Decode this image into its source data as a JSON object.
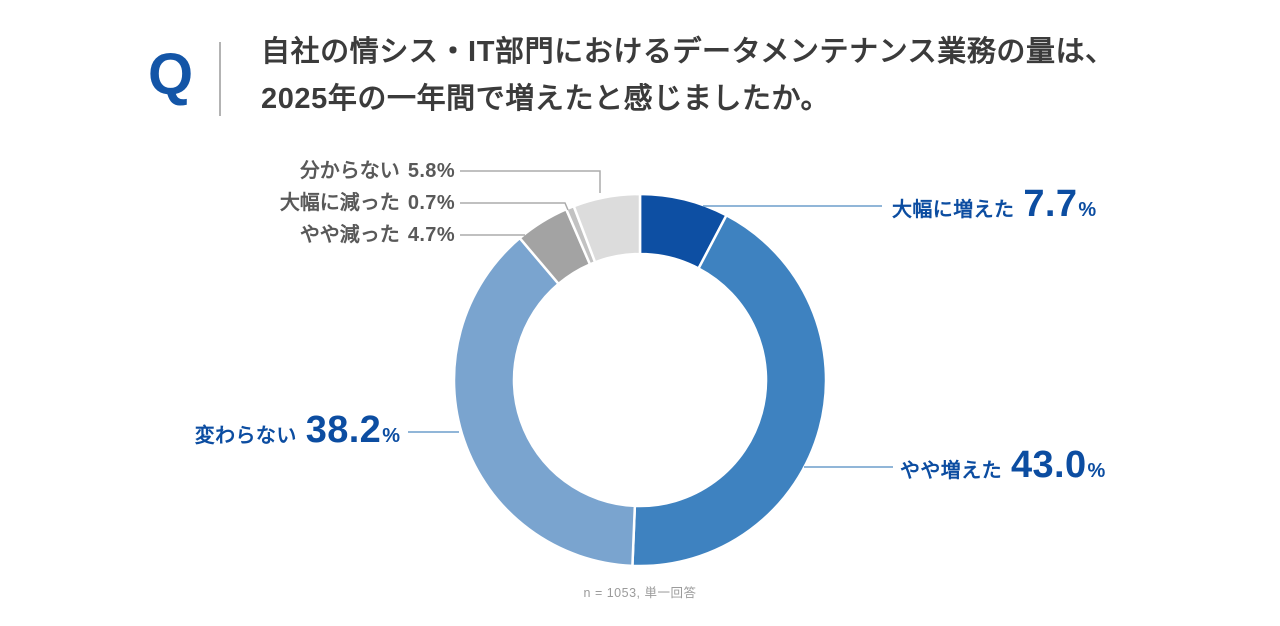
{
  "header": {
    "q_mark": "Q",
    "title_line1": "自社の情シス・IT部門におけるデータメンテナンス業務の量は、",
    "title_line2": "2025年の一年間で増えたと感じましたか。"
  },
  "chart_data": {
    "type": "pie",
    "subtype": "donut",
    "title": "自社の情シス・IT部門におけるデータメンテナンス業務の量は、2025年の一年間で増えたと感じましたか。",
    "start_angle_deg": 0,
    "direction": "clockwise",
    "categories": [
      "大幅に増えた",
      "やや増えた",
      "変わらない",
      "やや減った",
      "大幅に減った",
      "分からない"
    ],
    "values": [
      7.7,
      43.0,
      38.2,
      4.7,
      0.7,
      5.8
    ],
    "unit": "%",
    "segment_colors": [
      "#0d4fa3",
      "#3e82c0",
      "#7aa4cf",
      "#a3a3a3",
      "#c2c2c2",
      "#dcdcdc"
    ],
    "note": "n = 1053, 単一回答"
  },
  "callouts": {
    "increase_large": {
      "label": "大幅に増えた",
      "value": "7.7",
      "unit": "%"
    },
    "increase_slight": {
      "label": "やや増えた",
      "value": "43.0",
      "unit": "%"
    },
    "unchanged": {
      "label": "変わらない",
      "value": "38.2",
      "unit": "%"
    },
    "decrease_slight": {
      "label": "やや減った",
      "value": "4.7%"
    },
    "decrease_large": {
      "label": "大幅に減った",
      "value": "0.7%"
    },
    "unknown": {
      "label": "分からない",
      "value": "5.8%"
    }
  },
  "footer": {
    "note": "n = 1053, 単一回答"
  },
  "colors": {
    "q_blue": "#1355a7",
    "title_text": "#3b3b3b",
    "accent_blue": "#0c4da1",
    "label_gray": "#595959",
    "leader_blue": "#6d9dcb",
    "leader_gray": "#ababab",
    "divider_gray": "#b3b3b3",
    "note_gray": "#9b9b9b",
    "segment_stroke": "#ffffff"
  }
}
